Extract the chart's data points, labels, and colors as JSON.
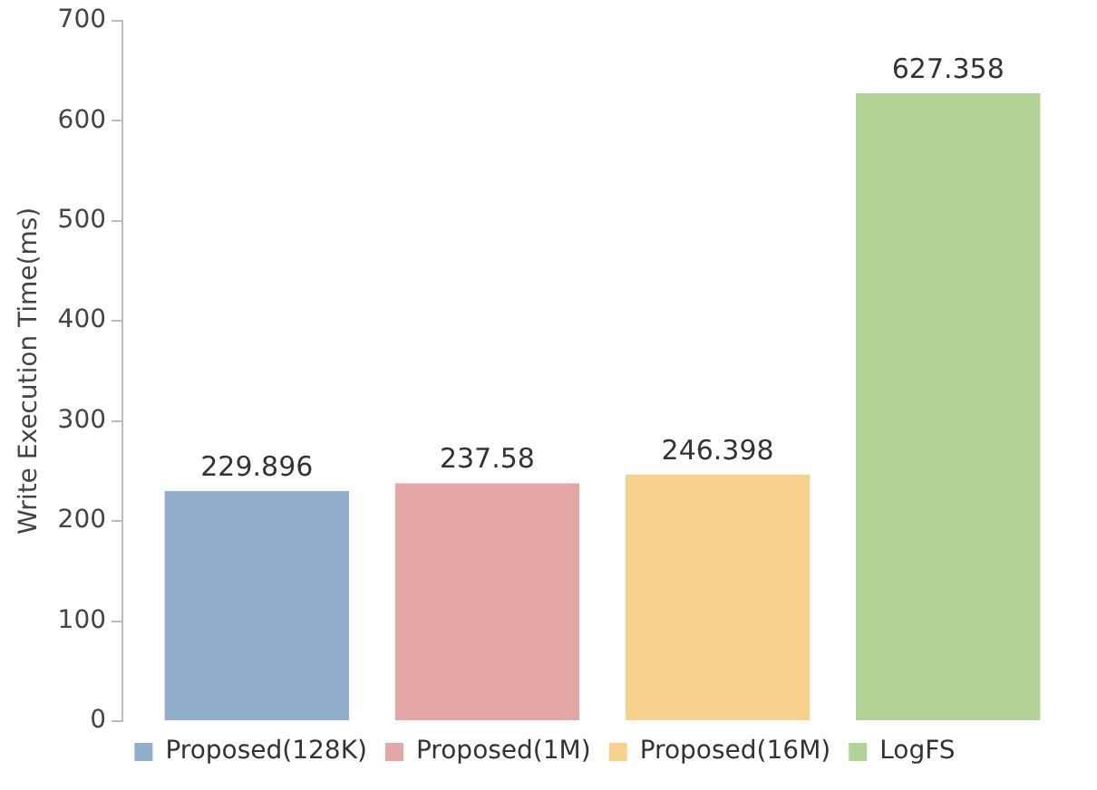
{
  "chart_data": {
    "type": "bar",
    "ylabel": "Write Execution Time(ms)",
    "categories": [
      null
    ],
    "series": [
      {
        "name": "Proposed(128K)",
        "color": "#93aecd",
        "values": [
          229.896
        ]
      },
      {
        "name": "Proposed(1M)",
        "color": "#e5a6a6",
        "values": [
          237.58
        ]
      },
      {
        "name": "Proposed(16M)",
        "color": "#f7d18e",
        "values": [
          246.398
        ]
      },
      {
        "name": "LogFS",
        "color": "#b3d296",
        "values": [
          627.358
        ]
      }
    ],
    "ylim": [
      0,
      700
    ],
    "yticks": [
      0,
      100,
      200,
      300,
      400,
      500,
      600,
      700
    ],
    "grid": false,
    "legend": "bottom",
    "data_labels": true
  }
}
